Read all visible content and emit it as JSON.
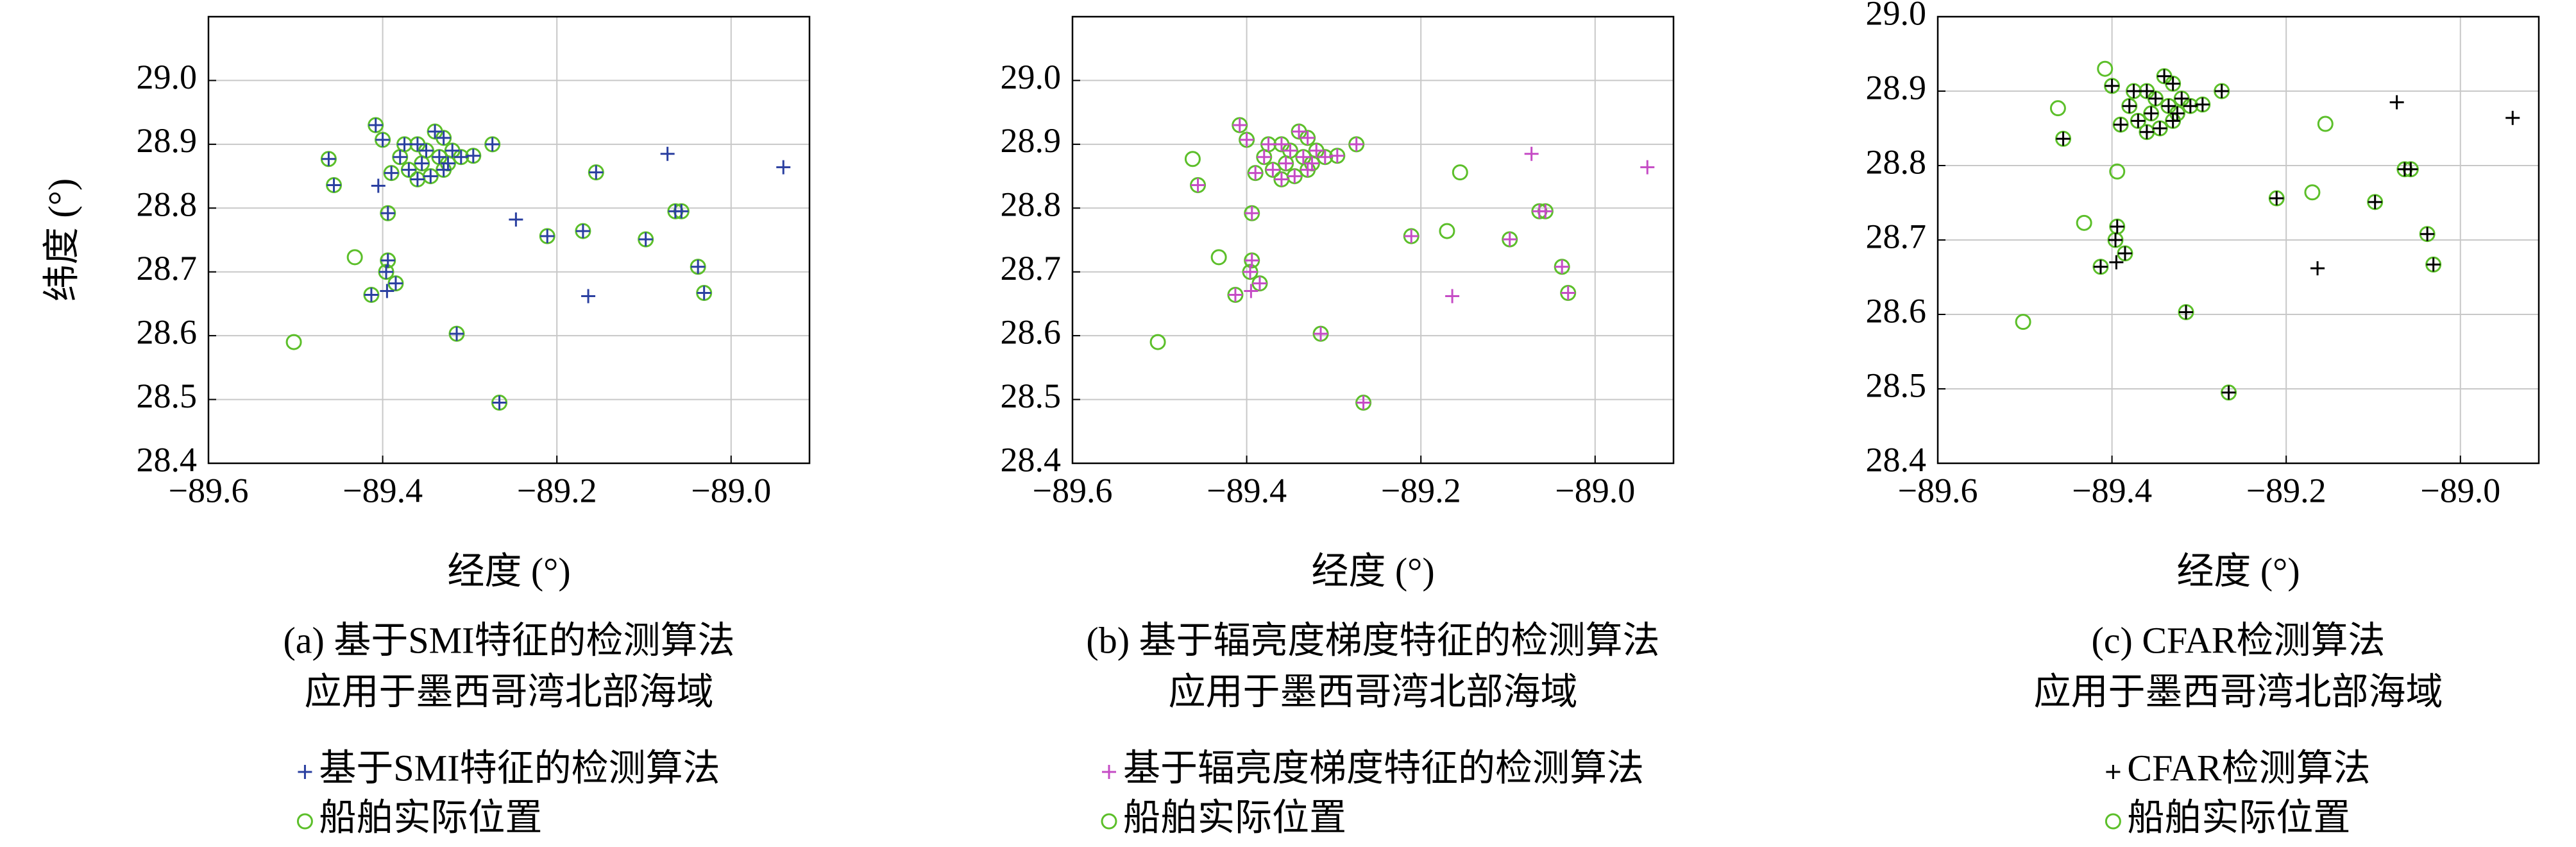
{
  "chart_data": [
    {
      "type": "scatter",
      "xlabel": "经度 (°)",
      "ylabel": "纬度 (°)",
      "caption": [
        "(a) 基于SMI特征的检测算法",
        "应用于墨西哥湾北部海域"
      ],
      "xlim": [
        -89.6,
        -88.91
      ],
      "ylim": [
        28.4,
        29.1
      ],
      "xticks": [
        {
          "value": -89.6,
          "label": "−89.6"
        },
        {
          "value": -89.4,
          "label": "−89.4"
        },
        {
          "value": -89.2,
          "label": "−89.2"
        },
        {
          "value": -89.0,
          "label": "−89.0"
        }
      ],
      "yticks": [
        {
          "value": 28.4,
          "label": "28.4"
        },
        {
          "value": 28.5,
          "label": "28.5"
        },
        {
          "value": 28.6,
          "label": "28.6"
        },
        {
          "value": 28.7,
          "label": "28.7"
        },
        {
          "value": 28.8,
          "label": "28.8"
        },
        {
          "value": 28.9,
          "label": "28.9"
        },
        {
          "value": 29.0,
          "label": "29.0"
        }
      ],
      "grid": true,
      "series": [
        {
          "name": "基于SMI特征的检测算法",
          "color": "#2a3fa0",
          "marker": "plus",
          "x": [
            -89.462,
            -89.456,
            -89.413,
            -89.408,
            -89.4,
            -89.394,
            -89.394,
            -89.396,
            -89.385,
            -89.39,
            -89.38,
            -89.375,
            -89.37,
            -89.36,
            -89.36,
            -89.355,
            -89.35,
            -89.345,
            -89.34,
            -89.335,
            -89.33,
            -89.33,
            -89.325,
            -89.32,
            -89.31,
            -89.296,
            -89.274,
            -89.315,
            -89.266,
            -89.211,
            -89.17,
            -89.155,
            -89.098,
            -89.064,
            -89.057,
            -89.038,
            -89.031,
            -89.247,
            -89.073,
            -88.94,
            -89.164,
            -89.405,
            -89.395
          ],
          "y": [
            28.877,
            28.836,
            28.664,
            28.93,
            28.907,
            28.792,
            28.718,
            28.7,
            28.682,
            28.855,
            28.88,
            28.9,
            28.86,
            28.9,
            28.845,
            28.87,
            28.89,
            28.85,
            28.92,
            28.88,
            28.91,
            28.86,
            28.87,
            28.89,
            28.88,
            28.882,
            28.9,
            28.603,
            28.495,
            28.756,
            28.764,
            28.856,
            28.751,
            28.795,
            28.795,
            28.708,
            28.667,
            28.782,
            28.885,
            28.864,
            28.662,
            28.835,
            28.67
          ]
        },
        {
          "name": "船舶实际位置",
          "color": "#5cbf2a",
          "marker": "circle",
          "x": [
            -89.502,
            -89.462,
            -89.456,
            -89.432,
            -89.413,
            -89.408,
            -89.4,
            -89.394,
            -89.394,
            -89.396,
            -89.385,
            -89.39,
            -89.38,
            -89.375,
            -89.37,
            -89.36,
            -89.36,
            -89.355,
            -89.35,
            -89.345,
            -89.34,
            -89.335,
            -89.33,
            -89.33,
            -89.325,
            -89.32,
            -89.31,
            -89.296,
            -89.274,
            -89.315,
            -89.266,
            -89.211,
            -89.17,
            -89.155,
            -89.098,
            -89.064,
            -89.057,
            -89.038,
            -89.031
          ],
          "y": [
            28.59,
            28.877,
            28.836,
            28.723,
            28.664,
            28.93,
            28.907,
            28.792,
            28.718,
            28.7,
            28.682,
            28.855,
            28.88,
            28.9,
            28.86,
            28.9,
            28.845,
            28.87,
            28.89,
            28.85,
            28.92,
            28.88,
            28.91,
            28.86,
            28.87,
            28.89,
            28.88,
            28.882,
            28.9,
            28.603,
            28.495,
            28.756,
            28.764,
            28.856,
            28.751,
            28.795,
            28.795,
            28.708,
            28.667
          ]
        }
      ]
    },
    {
      "type": "scatter",
      "xlabel": "经度 (°)",
      "caption": [
        "(b) 基于辐亮度梯度特征的检测算法",
        "应用于墨西哥湾北部海域"
      ],
      "xlim": [
        -89.6,
        -88.91
      ],
      "ylim": [
        28.4,
        29.1
      ],
      "xticks": [
        {
          "value": -89.6,
          "label": "−89.6"
        },
        {
          "value": -89.4,
          "label": "−89.4"
        },
        {
          "value": -89.2,
          "label": "−89.2"
        },
        {
          "value": -89.0,
          "label": "−89.0"
        }
      ],
      "yticks": [
        {
          "value": 28.4,
          "label": "28.4"
        },
        {
          "value": 28.5,
          "label": "28.5"
        },
        {
          "value": 28.6,
          "label": "28.6"
        },
        {
          "value": 28.7,
          "label": "28.7"
        },
        {
          "value": 28.8,
          "label": "28.8"
        },
        {
          "value": 28.9,
          "label": "28.9"
        },
        {
          "value": 29.0,
          "label": "29.0"
        }
      ],
      "grid": true,
      "series": [
        {
          "name": "基于辐亮度梯度特征的检测算法",
          "color": "#c54bc5",
          "marker": "plus",
          "x": [
            -89.456,
            -89.413,
            -89.408,
            -89.4,
            -89.394,
            -89.394,
            -89.396,
            -89.385,
            -89.39,
            -89.38,
            -89.375,
            -89.37,
            -89.36,
            -89.36,
            -89.355,
            -89.35,
            -89.345,
            -89.34,
            -89.335,
            -89.33,
            -89.33,
            -89.325,
            -89.32,
            -89.31,
            -89.296,
            -89.274,
            -89.315,
            -89.266,
            -89.211,
            -89.098,
            -89.064,
            -89.057,
            -89.038,
            -89.031,
            -89.073,
            -88.94,
            -89.164,
            -89.395
          ],
          "y": [
            28.836,
            28.664,
            28.93,
            28.907,
            28.792,
            28.718,
            28.7,
            28.682,
            28.855,
            28.88,
            28.9,
            28.86,
            28.9,
            28.845,
            28.87,
            28.89,
            28.85,
            28.92,
            28.88,
            28.91,
            28.86,
            28.87,
            28.89,
            28.88,
            28.882,
            28.9,
            28.603,
            28.495,
            28.756,
            28.751,
            28.795,
            28.795,
            28.708,
            28.667,
            28.885,
            28.864,
            28.662,
            28.67
          ]
        },
        {
          "name": "船舶实际位置",
          "color": "#5cbf2a",
          "marker": "circle",
          "x": [
            -89.502,
            -89.462,
            -89.456,
            -89.432,
            -89.413,
            -89.408,
            -89.4,
            -89.394,
            -89.394,
            -89.396,
            -89.385,
            -89.39,
            -89.38,
            -89.375,
            -89.37,
            -89.36,
            -89.36,
            -89.355,
            -89.35,
            -89.345,
            -89.34,
            -89.335,
            -89.33,
            -89.33,
            -89.325,
            -89.32,
            -89.31,
            -89.296,
            -89.274,
            -89.315,
            -89.266,
            -89.211,
            -89.17,
            -89.155,
            -89.098,
            -89.064,
            -89.057,
            -89.038,
            -89.031
          ],
          "y": [
            28.59,
            28.877,
            28.836,
            28.723,
            28.664,
            28.93,
            28.907,
            28.792,
            28.718,
            28.7,
            28.682,
            28.855,
            28.88,
            28.9,
            28.86,
            28.9,
            28.845,
            28.87,
            28.89,
            28.85,
            28.92,
            28.88,
            28.91,
            28.86,
            28.87,
            28.89,
            28.88,
            28.882,
            28.9,
            28.603,
            28.495,
            28.756,
            28.764,
            28.856,
            28.751,
            28.795,
            28.795,
            28.708,
            28.667
          ]
        }
      ]
    },
    {
      "type": "scatter",
      "xlabel": "经度 (°)",
      "caption": [
        "(c) CFAR检测算法",
        "应用于墨西哥湾北部海域"
      ],
      "xlim": [
        -89.6,
        -88.91
      ],
      "ylim": [
        28.4,
        29.0
      ],
      "xticks": [
        {
          "value": -89.6,
          "label": "−89.6"
        },
        {
          "value": -89.4,
          "label": "−89.4"
        },
        {
          "value": -89.2,
          "label": "−89.2"
        },
        {
          "value": -89.0,
          "label": "−89.0"
        }
      ],
      "yticks": [
        {
          "value": 28.4,
          "label": "28.4"
        },
        {
          "value": 28.5,
          "label": "28.5"
        },
        {
          "value": 28.6,
          "label": "28.6"
        },
        {
          "value": 28.7,
          "label": "28.7"
        },
        {
          "value": 28.8,
          "label": "28.8"
        },
        {
          "value": 28.9,
          "label": "28.9"
        },
        {
          "value": 29.0,
          "label": "29.0"
        }
      ],
      "grid": true,
      "series": [
        {
          "name": "CFAR检测算法",
          "color": "#000000",
          "marker": "plus",
          "x": [
            -89.456,
            -89.413,
            -89.4,
            -89.394,
            -89.396,
            -89.385,
            -89.39,
            -89.38,
            -89.375,
            -89.37,
            -89.36,
            -89.36,
            -89.355,
            -89.35,
            -89.345,
            -89.34,
            -89.335,
            -89.33,
            -89.33,
            -89.325,
            -89.32,
            -89.31,
            -89.296,
            -89.274,
            -89.315,
            -89.266,
            -89.211,
            -89.098,
            -89.064,
            -89.057,
            -89.038,
            -89.031,
            -89.073,
            -88.94,
            -89.164,
            -89.395
          ],
          "y": [
            28.836,
            28.664,
            28.907,
            28.718,
            28.7,
            28.682,
            28.855,
            28.88,
            28.9,
            28.86,
            28.9,
            28.845,
            28.87,
            28.89,
            28.85,
            28.92,
            28.88,
            28.91,
            28.86,
            28.87,
            28.89,
            28.88,
            28.882,
            28.9,
            28.603,
            28.495,
            28.756,
            28.751,
            28.795,
            28.795,
            28.708,
            28.667,
            28.885,
            28.864,
            28.662,
            28.67
          ]
        },
        {
          "name": "船舶实际位置",
          "color": "#5cbf2a",
          "marker": "circle",
          "x": [
            -89.502,
            -89.462,
            -89.456,
            -89.432,
            -89.413,
            -89.408,
            -89.4,
            -89.394,
            -89.394,
            -89.396,
            -89.385,
            -89.39,
            -89.38,
            -89.375,
            -89.37,
            -89.36,
            -89.36,
            -89.355,
            -89.35,
            -89.345,
            -89.34,
            -89.335,
            -89.33,
            -89.33,
            -89.325,
            -89.32,
            -89.31,
            -89.296,
            -89.274,
            -89.315,
            -89.266,
            -89.211,
            -89.17,
            -89.155,
            -89.098,
            -89.064,
            -89.057,
            -89.038,
            -89.031
          ],
          "y": [
            28.59,
            28.877,
            28.836,
            28.723,
            28.664,
            28.93,
            28.907,
            28.792,
            28.718,
            28.7,
            28.682,
            28.855,
            28.88,
            28.9,
            28.86,
            28.9,
            28.845,
            28.87,
            28.89,
            28.85,
            28.92,
            28.88,
            28.91,
            28.86,
            28.87,
            28.89,
            28.88,
            28.882,
            28.9,
            28.603,
            28.495,
            28.756,
            28.764,
            28.856,
            28.751,
            28.795,
            28.795,
            28.708,
            28.667
          ]
        }
      ]
    }
  ]
}
